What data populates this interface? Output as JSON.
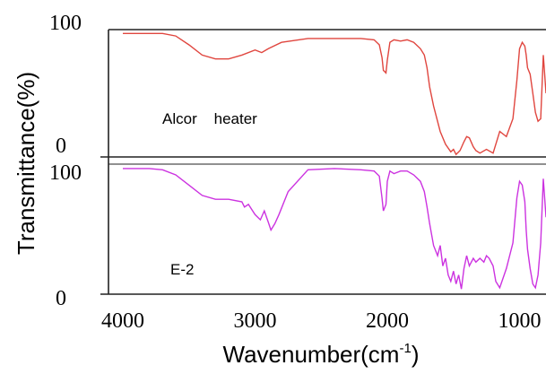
{
  "chart_data": {
    "type": "line",
    "ylabel": "Transmittance(%)",
    "xlabel": {
      "main": "Wavenumber(cm",
      "sup": "-1",
      "close": ")"
    },
    "xlim": [
      4000,
      800
    ],
    "x_ticks": [
      "4000",
      "3000",
      "2000",
      "1000"
    ],
    "x_tick_values": [
      4000,
      3000,
      2000,
      1000
    ],
    "panels": [
      {
        "label": "Alcor    heater",
        "color": "#e0463f",
        "ylim": [
          0,
          100
        ],
        "y_ticks": [
          "100",
          "0"
        ],
        "series": {
          "x": [
            4000,
            3800,
            3700,
            3600,
            3500,
            3400,
            3300,
            3200,
            3100,
            3000,
            2950,
            2900,
            2800,
            2600,
            2400,
            2200,
            2100,
            2060,
            2040,
            2030,
            2010,
            2000,
            1980,
            1950,
            1900,
            1850,
            1800,
            1750,
            1720,
            1700,
            1680,
            1650,
            1600,
            1560,
            1520,
            1500,
            1480,
            1450,
            1420,
            1400,
            1380,
            1350,
            1330,
            1300,
            1250,
            1200,
            1150,
            1100,
            1050,
            1020,
            1000,
            980,
            960,
            950,
            940,
            920,
            900,
            880,
            860,
            840,
            820,
            810,
            800
          ],
          "y": [
            97,
            97,
            97,
            95,
            88,
            80,
            77,
            77,
            80,
            84,
            82,
            85,
            90,
            93,
            93,
            93,
            92,
            88,
            78,
            68,
            66,
            76,
            90,
            92,
            91,
            92,
            90,
            85,
            80,
            70,
            55,
            40,
            20,
            10,
            4,
            6,
            2,
            5,
            12,
            16,
            15,
            8,
            5,
            3,
            6,
            3,
            20,
            16,
            30,
            60,
            85,
            90,
            87,
            80,
            70,
            65,
            50,
            35,
            28,
            30,
            80,
            65,
            50
          ]
        }
      },
      {
        "label": "E-2",
        "color": "#cc33e0",
        "ylim": [
          0,
          100
        ],
        "y_ticks": [
          "100",
          "0"
        ],
        "series": {
          "x": [
            4000,
            3800,
            3700,
            3600,
            3500,
            3400,
            3300,
            3200,
            3100,
            3080,
            3050,
            3000,
            2960,
            2930,
            2900,
            2880,
            2850,
            2820,
            2750,
            2600,
            2400,
            2200,
            2100,
            2060,
            2040,
            2030,
            2010,
            2000,
            1980,
            1950,
            1900,
            1850,
            1800,
            1750,
            1720,
            1700,
            1680,
            1650,
            1620,
            1600,
            1580,
            1560,
            1540,
            1520,
            1500,
            1480,
            1460,
            1440,
            1420,
            1400,
            1380,
            1350,
            1330,
            1300,
            1270,
            1250,
            1230,
            1200,
            1180,
            1150,
            1100,
            1050,
            1020,
            1000,
            980,
            960,
            950,
            940,
            920,
            900,
            880,
            860,
            840,
            820,
            810,
            800
          ],
          "y": [
            98,
            98,
            97,
            93,
            85,
            77,
            74,
            74,
            72,
            68,
            70,
            62,
            58,
            65,
            56,
            50,
            55,
            62,
            80,
            97,
            98,
            97,
            96,
            92,
            75,
            65,
            70,
            88,
            96,
            94,
            96,
            96,
            93,
            88,
            80,
            68,
            55,
            38,
            30,
            38,
            22,
            28,
            15,
            10,
            18,
            8,
            15,
            4,
            20,
            30,
            22,
            28,
            25,
            28,
            25,
            30,
            28,
            22,
            10,
            5,
            20,
            40,
            75,
            88,
            85,
            72,
            50,
            35,
            20,
            8,
            5,
            15,
            40,
            90,
            75,
            60
          ]
        }
      }
    ]
  }
}
